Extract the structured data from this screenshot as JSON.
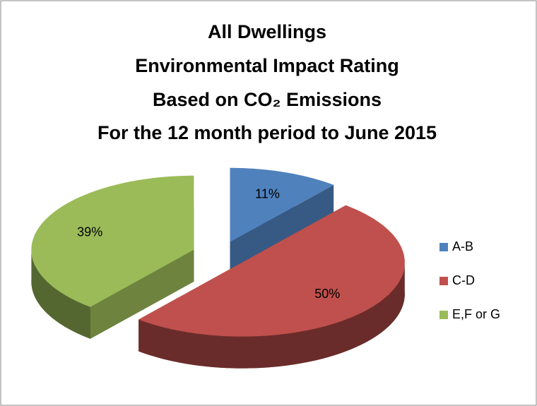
{
  "chart_data": {
    "type": "pie",
    "title": [
      "All Dwellings",
      "Environmental Impact Rating",
      "Based on CO₂ Emissions",
      "For the 12 month period to June 2015"
    ],
    "categories": [
      "A-B",
      "C-D",
      "E,F or G"
    ],
    "values": [
      11,
      50,
      39
    ],
    "value_labels": [
      "11%",
      "50%",
      "39%"
    ],
    "colors": [
      "#4f81bd",
      "#c0504d",
      "#9bbb59"
    ],
    "legend": "right"
  }
}
